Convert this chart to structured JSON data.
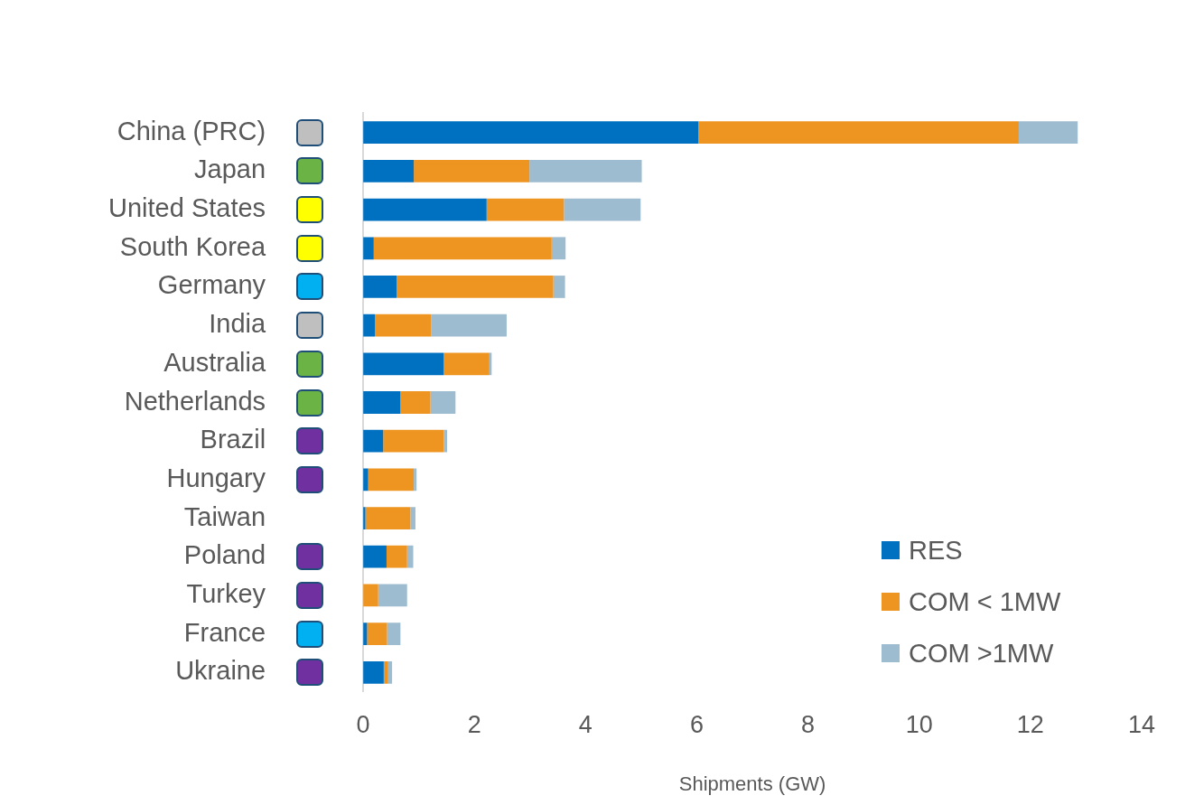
{
  "chart_data": {
    "type": "bar",
    "orientation": "horizontal",
    "stacked": true,
    "xlabel": "Shipments (GW)",
    "categories": [
      "China (PRC)",
      "Japan",
      "United States",
      "South Korea",
      "Germany",
      "India",
      "Australia",
      "Netherlands",
      "Brazil",
      "Hungary",
      "Taiwan",
      "Poland",
      "Turkey",
      "France",
      "Ukraine"
    ],
    "series": [
      {
        "name": "RES",
        "color": "#0070c0",
        "values": [
          6.03,
          0.91,
          2.22,
          0.19,
          0.6,
          0.21,
          1.45,
          0.67,
          0.36,
          0.09,
          0.04,
          0.42,
          0,
          0.07,
          0.37
        ]
      },
      {
        "name": "COM < 1MW",
        "color": "#ee9421",
        "values": [
          5.76,
          2.08,
          1.39,
          3.2,
          2.82,
          1.01,
          0.82,
          0.54,
          1.09,
          0.82,
          0.81,
          0.37,
          0.27,
          0.36,
          0.08
        ]
      },
      {
        "name": "COM >1MW",
        "color": "#9dbccf",
        "values": [
          1.06,
          2.02,
          1.38,
          0.25,
          0.21,
          1.36,
          0.04,
          0.45,
          0.06,
          0.05,
          0.09,
          0.11,
          0.52,
          0.24,
          0.07
        ]
      }
    ],
    "xlim": [
      0,
      14
    ],
    "xticks": [
      0,
      2,
      4,
      6,
      8,
      10,
      12,
      14
    ],
    "grid": false,
    "legend": "bottom right"
  }
}
